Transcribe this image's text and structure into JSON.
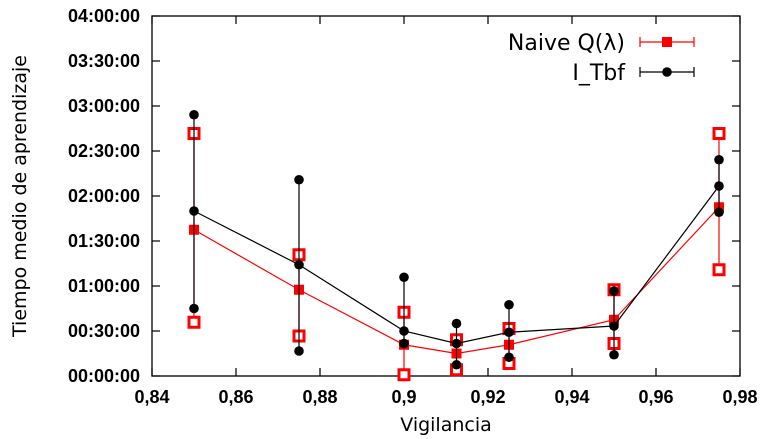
{
  "chart_data": {
    "type": "line",
    "title": "",
    "xlabel": "Vigilancia",
    "ylabel": "Tiempo medio de aprendizaje",
    "xlim": [
      0.84,
      0.98
    ],
    "ylim": [
      0,
      14400
    ],
    "grid": false,
    "legend_position": "top-right",
    "x_ticks": [
      0.84,
      0.86,
      0.88,
      0.9,
      0.92,
      0.94,
      0.96,
      0.98
    ],
    "x_tick_labels": [
      "0,84",
      "0,86",
      "0,88",
      "0,9",
      "0,92",
      "0,94",
      "0,96",
      "0,98"
    ],
    "y_ticks": [
      0,
      1800,
      3600,
      5400,
      7200,
      9000,
      10800,
      12600,
      14400
    ],
    "y_tick_labels": [
      "00:00:00",
      "00:30:00",
      "01:00:00",
      "01:30:00",
      "02:00:00",
      "02:30:00",
      "03:00:00",
      "03:30:00",
      "04:00:00"
    ],
    "y_unit": "seconds",
    "series": [
      {
        "name": "Naive Q(λ)",
        "color": "#ff0000",
        "marker": "square",
        "x": [
          0.85,
          0.875,
          0.9,
          0.9125,
          0.925,
          0.95,
          0.975
        ],
        "y": [
          5850,
          3450,
          1250,
          900,
          1250,
          2250,
          6750
        ],
        "y_low": [
          2150,
          1600,
          50,
          250,
          500,
          1300,
          4250
        ],
        "y_high": [
          9700,
          4850,
          2550,
          1450,
          1900,
          3450,
          9700
        ]
      },
      {
        "name": "I_Tbf",
        "color": "#000000",
        "marker": "circle",
        "x": [
          0.85,
          0.875,
          0.9,
          0.9125,
          0.925,
          0.95,
          0.975
        ],
        "y": [
          6600,
          4450,
          1800,
          1300,
          1750,
          2000,
          7600
        ],
        "y_low": [
          2700,
          1000,
          1300,
          450,
          750,
          850,
          6550
        ],
        "y_high": [
          10450,
          7850,
          3950,
          2100,
          2850,
          3400,
          8650
        ]
      }
    ]
  }
}
